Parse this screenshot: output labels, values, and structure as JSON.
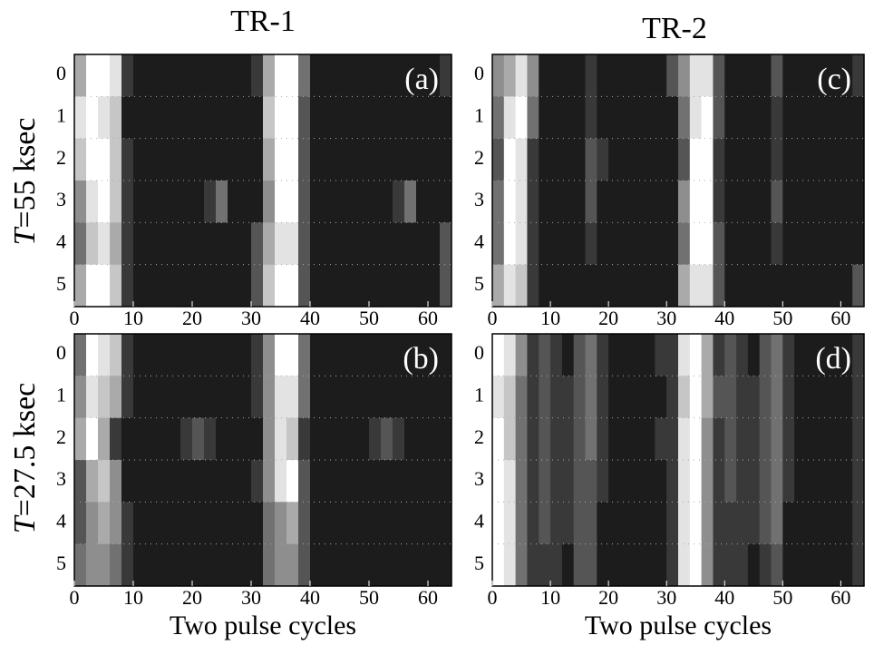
{
  "column_titles": [
    "TR-1",
    "TR-2"
  ],
  "row_titles": [
    {
      "symbol": "T",
      "text": "=55 ksec"
    },
    {
      "symbol": "T",
      "text": "=27.5 ksec"
    }
  ],
  "chart_data": [
    {
      "type": "heatmap",
      "label": "(a)",
      "rows": [
        0,
        1,
        2,
        3,
        4,
        5
      ],
      "bins": [
        0,
        2,
        4,
        6,
        8,
        10,
        12,
        14,
        16,
        18,
        20,
        22,
        24,
        26,
        28,
        30,
        32,
        34,
        36,
        38,
        40,
        42,
        44,
        46,
        48,
        50,
        52,
        54,
        56,
        58,
        60,
        62,
        64
      ],
      "xlim": [
        0,
        64
      ],
      "xticks": [
        0,
        10,
        20,
        30,
        40,
        50,
        60
      ],
      "zlim": [
        0,
        9
      ],
      "z": [
        [
          6,
          9,
          9,
          8,
          2,
          1,
          1,
          1,
          1,
          1,
          1,
          1,
          1,
          1,
          1,
          2,
          6,
          9,
          9,
          4,
          1,
          1,
          1,
          1,
          1,
          1,
          1,
          1,
          1,
          1,
          1,
          2
        ],
        [
          8,
          9,
          8,
          7,
          1,
          1,
          1,
          1,
          1,
          1,
          1,
          1,
          1,
          1,
          1,
          1,
          7,
          9,
          9,
          3,
          1,
          1,
          1,
          1,
          1,
          1,
          1,
          1,
          1,
          1,
          1,
          1
        ],
        [
          7,
          9,
          9,
          7,
          2,
          1,
          1,
          1,
          1,
          1,
          1,
          1,
          1,
          1,
          1,
          1,
          6,
          9,
          9,
          3,
          1,
          1,
          1,
          1,
          1,
          1,
          1,
          1,
          1,
          1,
          1,
          1
        ],
        [
          5,
          8,
          9,
          7,
          2,
          1,
          1,
          1,
          1,
          1,
          1,
          2,
          4,
          1,
          1,
          1,
          5,
          9,
          9,
          3,
          1,
          1,
          1,
          1,
          1,
          1,
          1,
          2,
          4,
          1,
          1,
          1
        ],
        [
          4,
          7,
          8,
          6,
          2,
          1,
          1,
          1,
          1,
          1,
          1,
          1,
          1,
          1,
          1,
          3,
          6,
          8,
          8,
          3,
          1,
          1,
          1,
          1,
          1,
          1,
          1,
          1,
          1,
          1,
          1,
          3
        ],
        [
          6,
          9,
          9,
          7,
          2,
          1,
          1,
          1,
          1,
          1,
          1,
          1,
          1,
          1,
          1,
          3,
          7,
          9,
          9,
          3,
          1,
          1,
          1,
          1,
          1,
          1,
          1,
          1,
          1,
          1,
          1,
          3
        ]
      ]
    },
    {
      "type": "heatmap",
      "label": "(c)",
      "rows": [
        0,
        1,
        2,
        3,
        4,
        5
      ],
      "bins": [
        0,
        2,
        4,
        6,
        8,
        10,
        12,
        14,
        16,
        18,
        20,
        22,
        24,
        26,
        28,
        30,
        32,
        34,
        36,
        38,
        40,
        42,
        44,
        46,
        48,
        50,
        52,
        54,
        56,
        58,
        60,
        62,
        64
      ],
      "xlim": [
        0,
        64
      ],
      "xticks": [
        0,
        10,
        20,
        30,
        40,
        50,
        60
      ],
      "zlim": [
        0,
        9
      ],
      "z": [
        [
          5,
          6,
          8,
          5,
          1,
          1,
          1,
          1,
          2,
          1,
          1,
          1,
          1,
          1,
          1,
          3,
          5,
          8,
          8,
          3,
          1,
          1,
          1,
          1,
          3,
          1,
          1,
          1,
          1,
          1,
          1,
          2
        ],
        [
          4,
          8,
          9,
          4,
          1,
          1,
          1,
          1,
          2,
          1,
          1,
          1,
          1,
          1,
          1,
          1,
          4,
          8,
          9,
          3,
          1,
          1,
          1,
          1,
          2,
          1,
          1,
          1,
          1,
          1,
          1,
          1
        ],
        [
          3,
          9,
          8,
          2,
          1,
          1,
          1,
          1,
          3,
          2,
          1,
          1,
          1,
          1,
          1,
          1,
          3,
          9,
          9,
          2,
          1,
          1,
          1,
          1,
          2,
          1,
          1,
          1,
          1,
          1,
          1,
          1
        ],
        [
          4,
          9,
          8,
          2,
          1,
          1,
          1,
          1,
          3,
          1,
          1,
          1,
          1,
          1,
          1,
          1,
          5,
          9,
          9,
          2,
          1,
          1,
          1,
          1,
          3,
          1,
          1,
          1,
          1,
          1,
          1,
          1
        ],
        [
          4,
          9,
          8,
          2,
          1,
          1,
          1,
          1,
          2,
          1,
          1,
          1,
          1,
          1,
          1,
          1,
          4,
          9,
          9,
          3,
          1,
          1,
          1,
          1,
          2,
          1,
          1,
          1,
          1,
          1,
          1,
          1
        ],
        [
          6,
          8,
          7,
          2,
          1,
          1,
          1,
          1,
          1,
          1,
          1,
          1,
          1,
          1,
          1,
          1,
          6,
          8,
          8,
          3,
          1,
          1,
          1,
          1,
          1,
          1,
          1,
          1,
          1,
          1,
          1,
          3
        ]
      ]
    },
    {
      "type": "heatmap",
      "label": "(b)",
      "xlabel": "Two pulse cycles",
      "rows": [
        0,
        1,
        2,
        3,
        4,
        5
      ],
      "bins": [
        0,
        2,
        4,
        6,
        8,
        10,
        12,
        14,
        16,
        18,
        20,
        22,
        24,
        26,
        28,
        30,
        32,
        34,
        36,
        38,
        40,
        42,
        44,
        46,
        48,
        50,
        52,
        54,
        56,
        58,
        60,
        62,
        64
      ],
      "xlim": [
        0,
        64
      ],
      "xticks": [
        0,
        10,
        20,
        30,
        40,
        50,
        60
      ],
      "zlim": [
        0,
        9
      ],
      "z": [
        [
          4,
          9,
          8,
          7,
          2,
          1,
          1,
          1,
          1,
          1,
          1,
          1,
          1,
          1,
          1,
          2,
          5,
          9,
          9,
          4,
          1,
          1,
          1,
          1,
          1,
          1,
          1,
          1,
          1,
          1,
          1,
          1
        ],
        [
          5,
          8,
          7,
          6,
          2,
          1,
          1,
          1,
          1,
          1,
          1,
          1,
          1,
          1,
          1,
          2,
          5,
          8,
          8,
          4,
          1,
          1,
          1,
          1,
          1,
          1,
          1,
          1,
          1,
          1,
          1,
          1
        ],
        [
          6,
          9,
          6,
          2,
          1,
          1,
          1,
          1,
          1,
          2,
          3,
          2,
          1,
          1,
          1,
          1,
          5,
          8,
          7,
          2,
          1,
          1,
          1,
          1,
          1,
          2,
          3,
          2,
          1,
          1,
          1,
          1
        ],
        [
          3,
          6,
          7,
          5,
          1,
          1,
          1,
          1,
          1,
          1,
          1,
          1,
          1,
          1,
          1,
          2,
          5,
          8,
          9,
          3,
          1,
          1,
          1,
          1,
          1,
          1,
          1,
          1,
          1,
          1,
          1,
          1
        ],
        [
          3,
          5,
          6,
          5,
          2,
          1,
          1,
          1,
          1,
          1,
          1,
          1,
          1,
          1,
          1,
          1,
          4,
          5,
          6,
          3,
          1,
          1,
          1,
          1,
          1,
          1,
          1,
          1,
          1,
          1,
          1,
          1
        ],
        [
          4,
          5,
          5,
          4,
          2,
          1,
          1,
          1,
          1,
          1,
          1,
          1,
          1,
          1,
          1,
          1,
          4,
          5,
          5,
          3,
          1,
          1,
          1,
          1,
          1,
          1,
          1,
          1,
          1,
          1,
          1,
          1
        ]
      ]
    },
    {
      "type": "heatmap",
      "label": "(d)",
      "xlabel": "Two pulse cycles",
      "rows": [
        0,
        1,
        2,
        3,
        4,
        5
      ],
      "bins": [
        0,
        2,
        4,
        6,
        8,
        10,
        12,
        14,
        16,
        18,
        20,
        22,
        24,
        26,
        28,
        30,
        32,
        34,
        36,
        38,
        40,
        42,
        44,
        46,
        48,
        50,
        52,
        54,
        56,
        58,
        60,
        62,
        64
      ],
      "xlim": [
        0,
        64
      ],
      "xticks": [
        0,
        10,
        20,
        30,
        40,
        50,
        60
      ],
      "zlim": [
        0,
        9
      ],
      "z": [
        [
          9,
          8,
          5,
          2,
          3,
          2,
          1,
          3,
          4,
          2,
          1,
          1,
          1,
          1,
          2,
          2,
          8,
          9,
          6,
          2,
          3,
          2,
          1,
          3,
          4,
          2,
          1,
          1,
          1,
          1,
          1,
          2
        ],
        [
          8,
          7,
          4,
          2,
          3,
          2,
          2,
          3,
          4,
          2,
          1,
          1,
          1,
          1,
          1,
          2,
          7,
          9,
          6,
          3,
          3,
          2,
          2,
          3,
          4,
          2,
          1,
          1,
          1,
          1,
          1,
          2
        ],
        [
          9,
          7,
          4,
          2,
          3,
          2,
          2,
          3,
          4,
          2,
          1,
          1,
          1,
          1,
          2,
          2,
          8,
          9,
          5,
          2,
          3,
          2,
          2,
          3,
          4,
          2,
          1,
          1,
          1,
          1,
          1,
          2
        ],
        [
          9,
          8,
          4,
          2,
          3,
          2,
          2,
          3,
          3,
          2,
          1,
          1,
          1,
          1,
          1,
          2,
          8,
          9,
          5,
          2,
          3,
          2,
          2,
          3,
          4,
          2,
          1,
          1,
          1,
          1,
          1,
          2
        ],
        [
          9,
          8,
          4,
          2,
          3,
          2,
          2,
          3,
          3,
          1,
          1,
          1,
          1,
          1,
          1,
          2,
          8,
          9,
          5,
          2,
          2,
          2,
          2,
          3,
          4,
          1,
          1,
          1,
          1,
          1,
          1,
          2
        ],
        [
          9,
          8,
          4,
          2,
          2,
          2,
          1,
          3,
          3,
          1,
          1,
          1,
          1,
          1,
          1,
          2,
          8,
          9,
          5,
          2,
          2,
          2,
          1,
          2,
          3,
          1,
          1,
          1,
          1,
          1,
          1,
          2
        ]
      ]
    }
  ]
}
